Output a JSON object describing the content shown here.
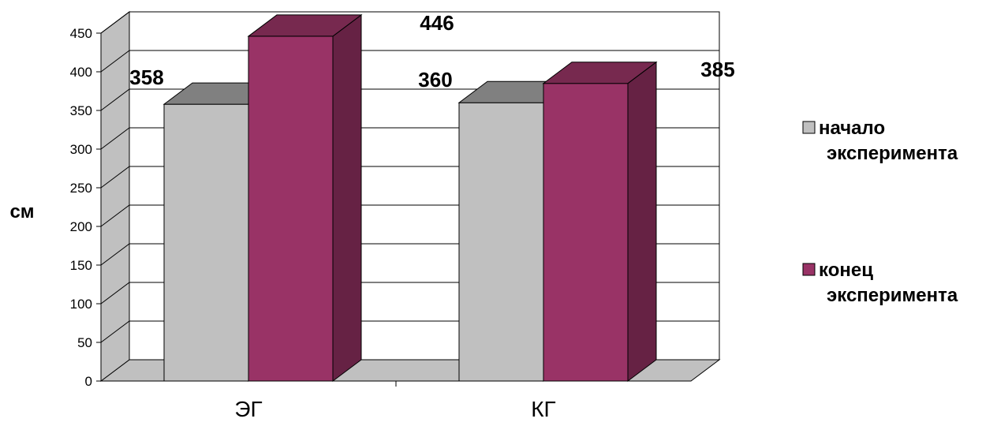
{
  "chart_data": {
    "type": "bar",
    "categories": [
      "ЭГ",
      "КГ"
    ],
    "series": [
      {
        "name": "начало эксперимента",
        "values": [
          358,
          360
        ],
        "color": "#c0c0c0",
        "legend_lines": [
          "начало",
          "эксперимента"
        ]
      },
      {
        "name": "конец эксперимента",
        "values": [
          446,
          385
        ],
        "color": "#993366",
        "legend_lines": [
          "конец",
          "эксперимента"
        ]
      }
    ],
    "data_labels": [
      "358",
      "446",
      "360",
      "385"
    ],
    "ylabel": "см",
    "xlabel": "",
    "ylim": [
      0,
      450
    ],
    "yticks": [
      0,
      50,
      100,
      150,
      200,
      250,
      300,
      350,
      400,
      450
    ],
    "grid": true,
    "three_d": true,
    "legend_position": "right",
    "colors": {
      "wall": "#c0c0c0",
      "floor": "#c0c0c0",
      "series1_top": "#808080",
      "series2_top": "#77294f",
      "series2_side": "#662244"
    }
  }
}
